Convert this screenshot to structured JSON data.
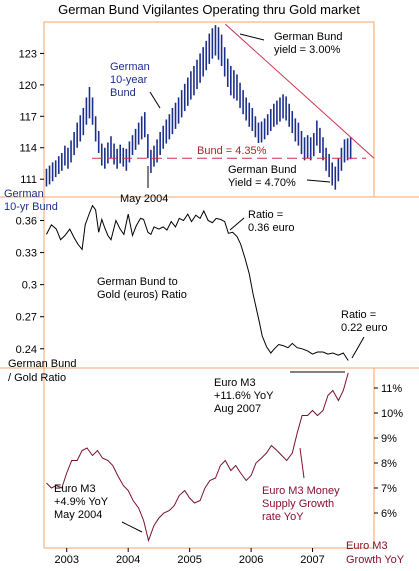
{
  "title": "German Bund Vigilantes Operating thru Gold market",
  "colors": {
    "bund_bars": "#1c2f8c",
    "trend_line": "#d0304a",
    "ratio_line": "#000000",
    "m3_line": "#7a1030",
    "panel_border": "#f3a36a",
    "annotation_blue": "#1c2f8c",
    "annotation_red": "#b0202c"
  },
  "chart_data": [
    {
      "type": "bar",
      "subtype": "ohlc-range",
      "panel": "top",
      "y_tick_labels": [
        "111",
        "114",
        "117",
        "120",
        "123"
      ],
      "y_ticks": [
        111,
        114,
        117,
        120,
        123
      ],
      "ylim": [
        109.3,
        126.0
      ],
      "x_range": [
        2002.63,
        2008.0
      ],
      "series": [
        {
          "x": [
            2002.67,
            2002.72,
            2002.77,
            2002.82,
            2002.87,
            2002.92,
            2002.97,
            2003.02,
            2003.07,
            2003.12,
            2003.17,
            2003.22,
            2003.27,
            2003.32,
            2003.37,
            2003.42,
            2003.47,
            2003.52,
            2003.57,
            2003.62,
            2003.67,
            2003.72,
            2003.77,
            2003.82,
            2003.87,
            2003.92,
            2003.97,
            2004.02,
            2004.07,
            2004.12,
            2004.17,
            2004.22,
            2004.27,
            2004.32,
            2004.37,
            2004.42,
            2004.47,
            2004.52,
            2004.57,
            2004.62,
            2004.67,
            2004.72,
            2004.77,
            2004.82,
            2004.87,
            2004.92,
            2004.97,
            2005.02,
            2005.07,
            2005.12,
            2005.17,
            2005.22,
            2005.27,
            2005.32,
            2005.37,
            2005.42,
            2005.47,
            2005.52,
            2005.57,
            2005.62,
            2005.67,
            2005.72,
            2005.77,
            2005.82,
            2005.87,
            2005.92,
            2005.97,
            2006.02,
            2006.07,
            2006.12,
            2006.17,
            2006.22,
            2006.27,
            2006.32,
            2006.37,
            2006.42,
            2006.47,
            2006.52,
            2006.57,
            2006.62,
            2006.67,
            2006.72,
            2006.77,
            2006.82,
            2006.87,
            2006.92,
            2006.97,
            2007.02,
            2007.07,
            2007.12,
            2007.17,
            2007.22,
            2007.27,
            2007.32,
            2007.37,
            2007.42,
            2007.47,
            2007.52,
            2007.57,
            2007.62
          ],
          "low": [
            110.3,
            110.5,
            110.8,
            111.2,
            111.5,
            111.8,
            112.3,
            112.0,
            112.6,
            113.3,
            114.0,
            114.6,
            115.2,
            116.2,
            116.8,
            116.2,
            114.6,
            113.5,
            112.3,
            112.0,
            112.5,
            113.0,
            112.4,
            112.0,
            112.5,
            112.2,
            111.8,
            112.6,
            113.3,
            113.8,
            114.3,
            114.8,
            115.0,
            113.0,
            111.6,
            112.2,
            112.6,
            113.3,
            113.9,
            114.4,
            114.8,
            115.3,
            115.8,
            116.3,
            116.9,
            117.5,
            118.0,
            118.6,
            119.0,
            119.6,
            120.2,
            120.8,
            121.4,
            122.0,
            122.5,
            122.8,
            122.4,
            121.8,
            120.8,
            119.8,
            119.0,
            118.7,
            118.5,
            117.8,
            117.2,
            116.6,
            116.0,
            115.6,
            115.0,
            114.3,
            114.5,
            114.8,
            115.2,
            115.6,
            116.0,
            116.2,
            116.5,
            116.8,
            116.6,
            116.0,
            115.4,
            114.6,
            114.2,
            113.4,
            112.8,
            113.0,
            112.8,
            113.2,
            114.2,
            113.5,
            112.8,
            111.8,
            111.2,
            110.4,
            110.0,
            110.8,
            111.8,
            112.6,
            112.8,
            112.9
          ],
          "high": [
            112.0,
            112.3,
            112.6,
            112.8,
            113.2,
            113.5,
            114.2,
            114.0,
            114.7,
            115.5,
            116.4,
            117.1,
            117.8,
            118.8,
            119.8,
            118.8,
            117.0,
            115.6,
            114.4,
            114.0,
            114.5,
            115.1,
            114.4,
            113.9,
            114.3,
            114.0,
            113.9,
            114.6,
            115.2,
            115.8,
            116.4,
            117.0,
            117.4,
            115.3,
            113.8,
            114.2,
            114.8,
            115.5,
            116.1,
            116.7,
            117.2,
            117.8,
            118.3,
            118.8,
            119.5,
            120.1,
            120.7,
            121.3,
            121.8,
            122.4,
            123.0,
            123.6,
            124.2,
            124.9,
            125.4,
            125.7,
            125.5,
            124.8,
            123.6,
            122.5,
            121.8,
            121.4,
            121.0,
            120.2,
            119.5,
            118.8,
            118.3,
            117.8,
            117.0,
            116.4,
            116.5,
            116.8,
            117.2,
            117.7,
            118.2,
            118.5,
            118.8,
            119.1,
            118.9,
            118.2,
            117.5,
            116.8,
            116.4,
            115.6,
            115.0,
            115.2,
            115.0,
            115.4,
            116.6,
            115.9,
            115.0,
            114.0,
            113.4,
            112.6,
            112.2,
            113.0,
            114.0,
            114.8,
            114.9,
            115.0
          ]
        }
      ],
      "reference_line": {
        "label": "Bund = 4.35%",
        "y": 113.0
      },
      "trend_line": {
        "x": [
          2005.58,
          2008.0
        ],
        "y": [
          125.8,
          113.0
        ]
      },
      "annotations": {
        "bund_3pct": [
          "German Bund",
          "yield = 3.00%"
        ],
        "bund_10yr": [
          "German",
          "10-year",
          "Bund"
        ],
        "bund_470": [
          "German Bund",
          "Yield = 4.70%"
        ],
        "may_2004": "May 2004",
        "axis_label": [
          "German",
          "10-yr Bund"
        ]
      }
    },
    {
      "type": "line",
      "panel": "middle",
      "y_tick_labels": [
        "0.24",
        "0.27",
        "0.3",
        "0.33",
        "0.36"
      ],
      "y_ticks": [
        0.24,
        0.27,
        0.3,
        0.33,
        0.36
      ],
      "ylim": [
        0.222,
        0.382
      ],
      "x_range": [
        2002.63,
        2008.0
      ],
      "series": [
        {
          "x": [
            2002.67,
            2002.75,
            2002.83,
            2002.9,
            2002.97,
            2003.05,
            2003.12,
            2003.18,
            2003.25,
            2003.3,
            2003.37,
            2003.42,
            2003.47,
            2003.52,
            2003.57,
            2003.62,
            2003.67,
            2003.72,
            2003.8,
            2003.87,
            2003.93,
            2004.0,
            2004.07,
            2004.13,
            2004.2,
            2004.25,
            2004.32,
            2004.37,
            2004.42,
            2004.5,
            2004.57,
            2004.63,
            2004.7,
            2004.77,
            2004.83,
            2004.9,
            2004.97,
            2005.03,
            2005.1,
            2005.17,
            2005.23,
            2005.3,
            2005.37,
            2005.43,
            2005.5,
            2005.57,
            2005.63,
            2005.7,
            2005.77,
            2005.83,
            2005.9,
            2005.97,
            2006.03,
            2006.08,
            2006.13,
            2006.18,
            2006.25,
            2006.32,
            2006.38,
            2006.45,
            2006.52,
            2006.6,
            2006.67,
            2006.75,
            2006.83,
            2006.92,
            2007.0,
            2007.08,
            2007.17,
            2007.25,
            2007.33,
            2007.42,
            2007.5,
            2007.58
          ],
          "y": [
            0.347,
            0.356,
            0.352,
            0.342,
            0.346,
            0.352,
            0.344,
            0.338,
            0.333,
            0.356,
            0.367,
            0.374,
            0.37,
            0.349,
            0.361,
            0.353,
            0.346,
            0.342,
            0.36,
            0.352,
            0.347,
            0.366,
            0.346,
            0.355,
            0.362,
            0.361,
            0.349,
            0.347,
            0.354,
            0.352,
            0.354,
            0.351,
            0.359,
            0.354,
            0.362,
            0.36,
            0.366,
            0.359,
            0.365,
            0.362,
            0.369,
            0.36,
            0.358,
            0.362,
            0.361,
            0.359,
            0.348,
            0.349,
            0.345,
            0.338,
            0.325,
            0.31,
            0.292,
            0.279,
            0.266,
            0.252,
            0.242,
            0.236,
            0.24,
            0.244,
            0.243,
            0.241,
            0.245,
            0.241,
            0.24,
            0.238,
            0.235,
            0.237,
            0.237,
            0.235,
            0.236,
            0.234,
            0.236,
            0.229
          ]
        }
      ],
      "annotations": {
        "ratio_036": [
          "Ratio =",
          "0.36 euro"
        ],
        "bund_gold": [
          "German Bund to",
          "Gold (euros) Ratio"
        ],
        "ratio_022": [
          "Ratio =",
          "0.22 euro"
        ],
        "axis_label": [
          "German Bund",
          "/ Gold Ratio"
        ]
      }
    },
    {
      "type": "line",
      "panel": "bottom",
      "x_tick_labels": [
        "2003",
        "2004",
        "2005",
        "2006",
        "2007"
      ],
      "x_ticks": [
        2003.0,
        2004.0,
        2005.0,
        2006.0,
        2007.0
      ],
      "y_tick_labels": [
        "6%",
        "7%",
        "8%",
        "9%",
        "10%",
        "11%"
      ],
      "y_ticks": [
        6,
        7,
        8,
        9,
        10,
        11
      ],
      "ylim": [
        4.6,
        11.8
      ],
      "x_range": [
        2002.63,
        2008.0
      ],
      "series": [
        {
          "x": [
            2002.67,
            2002.75,
            2002.83,
            2002.92,
            2003.0,
            2003.08,
            2003.17,
            2003.25,
            2003.33,
            2003.42,
            2003.5,
            2003.58,
            2003.67,
            2003.75,
            2003.83,
            2003.92,
            2004.0,
            2004.08,
            2004.17,
            2004.25,
            2004.33,
            2004.42,
            2004.5,
            2004.58,
            2004.67,
            2004.75,
            2004.83,
            2004.92,
            2005.0,
            2005.08,
            2005.17,
            2005.25,
            2005.33,
            2005.42,
            2005.5,
            2005.58,
            2005.67,
            2005.75,
            2005.83,
            2005.92,
            2006.0,
            2006.08,
            2006.17,
            2006.25,
            2006.33,
            2006.42,
            2006.5,
            2006.58,
            2006.67,
            2006.75,
            2006.83,
            2006.92,
            2007.0,
            2007.08,
            2007.17,
            2007.25,
            2007.33,
            2007.42,
            2007.5,
            2007.58
          ],
          "y": [
            7.2,
            7.0,
            7.1,
            7.0,
            7.6,
            8.1,
            8.1,
            8.5,
            8.6,
            8.3,
            8.5,
            8.2,
            8.1,
            7.9,
            7.5,
            7.1,
            6.9,
            6.5,
            6.2,
            5.7,
            4.9,
            5.5,
            5.8,
            6.0,
            6.1,
            6.3,
            6.7,
            6.9,
            6.6,
            6.4,
            6.5,
            7.0,
            7.3,
            7.4,
            7.9,
            8.1,
            7.7,
            7.9,
            7.6,
            7.3,
            7.5,
            8.0,
            8.2,
            8.4,
            8.7,
            8.5,
            8.3,
            8.1,
            8.4,
            9.2,
            9.9,
            9.9,
            10.1,
            9.9,
            10.1,
            10.7,
            10.9,
            10.5,
            10.9,
            11.6
          ]
        }
      ],
      "annotations": {
        "m3_aug2007": [
          "Euro M3",
          "+11.6% YoY",
          "Aug 2007"
        ],
        "m3_may2004": [
          "Euro M3",
          "+4.9% YoY",
          "May 2004"
        ],
        "m3_money": [
          "Euro M3 Money",
          "Supply Growth",
          "rate YoY"
        ],
        "axis_label": [
          "Euro M3",
          "Growth YoY"
        ]
      }
    }
  ]
}
